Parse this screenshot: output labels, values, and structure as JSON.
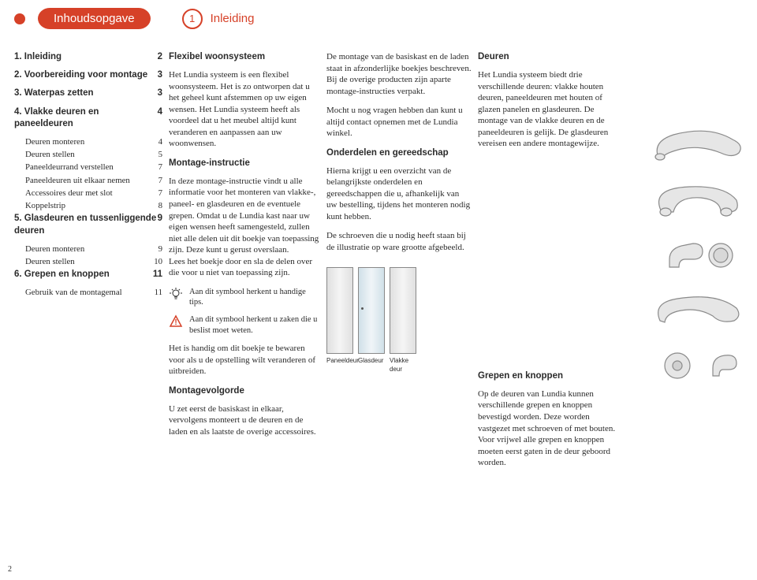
{
  "header": {
    "title_left": "Inhoudsopgave",
    "chapter_num": "1",
    "title_right": "Inleiding"
  },
  "toc": [
    {
      "type": "main",
      "num": "1.",
      "label": "Inleiding",
      "page": "2"
    },
    {
      "type": "main",
      "num": "2.",
      "label": "Voorbereiding voor montage",
      "page": "3"
    },
    {
      "type": "main",
      "num": "3.",
      "label": "Waterpas zetten",
      "page": "3"
    },
    {
      "type": "main",
      "num": "4.",
      "label": "Vlakke deuren en paneeldeuren",
      "page": "4"
    },
    {
      "type": "sub",
      "label": "Deuren monteren",
      "page": "4"
    },
    {
      "type": "sub",
      "label": "Deuren stellen",
      "page": "5"
    },
    {
      "type": "sub",
      "label": "Paneeldeurrand verstellen",
      "page": "7"
    },
    {
      "type": "sub",
      "label": "Paneeldeuren uit elkaar nemen",
      "page": "7"
    },
    {
      "type": "sub",
      "label": "Accessoires deur met slot",
      "page": "7"
    },
    {
      "type": "sub",
      "label": "Koppelstrip",
      "page": "8"
    },
    {
      "type": "main",
      "num": "5.",
      "label": "Glasdeuren en tussenliggende deuren",
      "page": "9"
    },
    {
      "type": "sub",
      "label": "Deuren monteren",
      "page": "9"
    },
    {
      "type": "sub",
      "label": "Deuren stellen",
      "page": "10"
    },
    {
      "type": "main",
      "num": "6.",
      "label": "Grepen en knoppen",
      "page": "11"
    },
    {
      "type": "sub",
      "label": "Gebruik van de montagemal",
      "page": "11"
    }
  ],
  "col2": {
    "h1": "Flexibel woonsysteem",
    "p1": "Het Lundia systeem is een flexibel woonsysteem. Het is zo ontworpen dat u het geheel kunt afstemmen op uw eigen wensen. Het Lundia systeem heeft als voordeel dat u het meubel altijd kunt veranderen en aanpassen aan uw woonwensen.",
    "h2": "Montage-instructie",
    "p2": "In deze montage-instructie vindt u alle informatie voor het monteren van vlakke-, paneel- en glasdeuren en de eventuele grepen. Omdat u de Lundia kast naar uw eigen wensen heeft samengesteld, zullen niet alle delen uit dit boekje van toepassing zijn. Deze kunt u gerust overslaan.\nLees het boekje door en sla de delen over die voor u niet van toepassing zijn.",
    "tip": "Aan dit symbool herkent u handige tips.",
    "warn": "Aan dit symbool herkent u zaken die u beslist moet weten.",
    "p3": "Het is handig om dit boekje te bewaren voor als u de opstelling wilt veranderen of uitbreiden.",
    "h3": "Montagevolgorde",
    "p4": "U zet eerst de basiskast in elkaar, vervolgens monteert u de deuren en de laden en als laatste de overige accessoires."
  },
  "col3": {
    "p1": "De montage van de basiskast en de laden staat in afzonderlijke boekjes beschreven. Bij de overige producten zijn aparte montage-instructies verpakt.",
    "p2": "Mocht u nog vragen hebben dan kunt u altijd contact opnemen met de Lundia winkel.",
    "h1": "Onderdelen en gereedschap",
    "p3": "Hierna krijgt u een overzicht van de belangrijkste onderdelen en gereedschappen die u, afhankelijk van uw bestelling, tijdens het monteren nodig kunt hebben.",
    "p4": "De schroeven die u nodig heeft staan bij de illustratie op ware grootte afgebeeld.",
    "door_labels": [
      "Paneeldeur",
      "Glasdeur",
      "Vlakke deur"
    ]
  },
  "col4": {
    "h1": "Deuren",
    "p1": "Het Lundia systeem biedt drie verschillende deuren: vlakke houten deuren, paneeldeuren met houten of glazen panelen en glasdeuren. De montage van de vlakke deuren en de paneeldeuren is gelijk. De glasdeuren vereisen een andere montagewijze.",
    "h2": "Grepen en knoppen",
    "p2": "Op de deuren van Lundia kunnen verschillende grepen en knoppen bevestigd worden. Deze worden vastgezet met schroeven of met bouten. Voor vrijwel alle grepen en knoppen moeten eerst gaten in de deur geboord worden."
  },
  "page_number": "2",
  "colors": {
    "brand": "#d64128",
    "text": "#2b2b2b",
    "illus_stroke": "#8a8a8a",
    "illus_fill": "#e6e6e6"
  }
}
